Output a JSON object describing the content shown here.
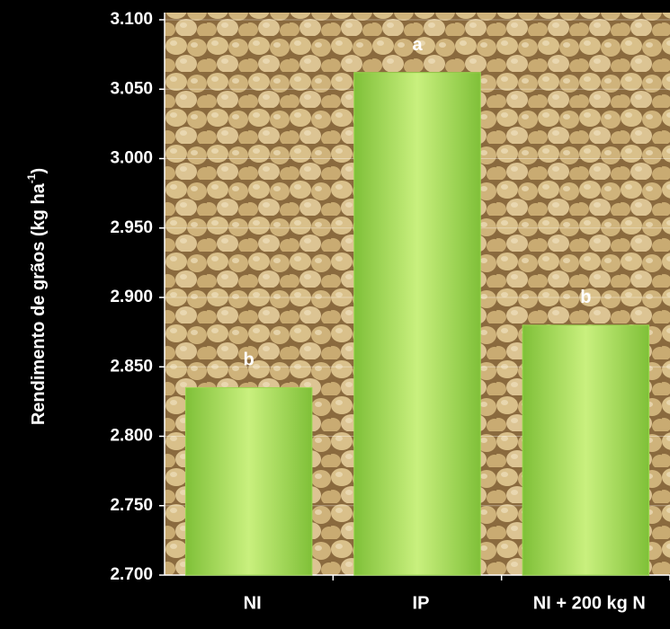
{
  "chart_data": {
    "type": "bar",
    "ylabel": [
      "Rendimento de grãos (kg ha",
      "-1",
      ")"
    ],
    "categories": [
      "NI",
      "IP",
      "NI + 200 kg N"
    ],
    "values": [
      2835,
      3062,
      2880
    ],
    "annotations": [
      "b",
      "a",
      "b"
    ],
    "color": "#9ad84e",
    "ylim": [
      2700,
      3100
    ],
    "yticks": [
      {
        "value": 2700,
        "label": "2.700"
      },
      {
        "value": 2750,
        "label": "2.750"
      },
      {
        "value": 2800,
        "label": "2.800"
      },
      {
        "value": 2850,
        "label": "2.850"
      },
      {
        "value": 2900,
        "label": "2.900"
      },
      {
        "value": 2950,
        "label": "2.950"
      },
      {
        "value": 3000,
        "label": "3.000"
      },
      {
        "value": 3050,
        "label": "3.050"
      },
      {
        "value": 3100,
        "label": "3.100"
      }
    ],
    "grid": true
  }
}
